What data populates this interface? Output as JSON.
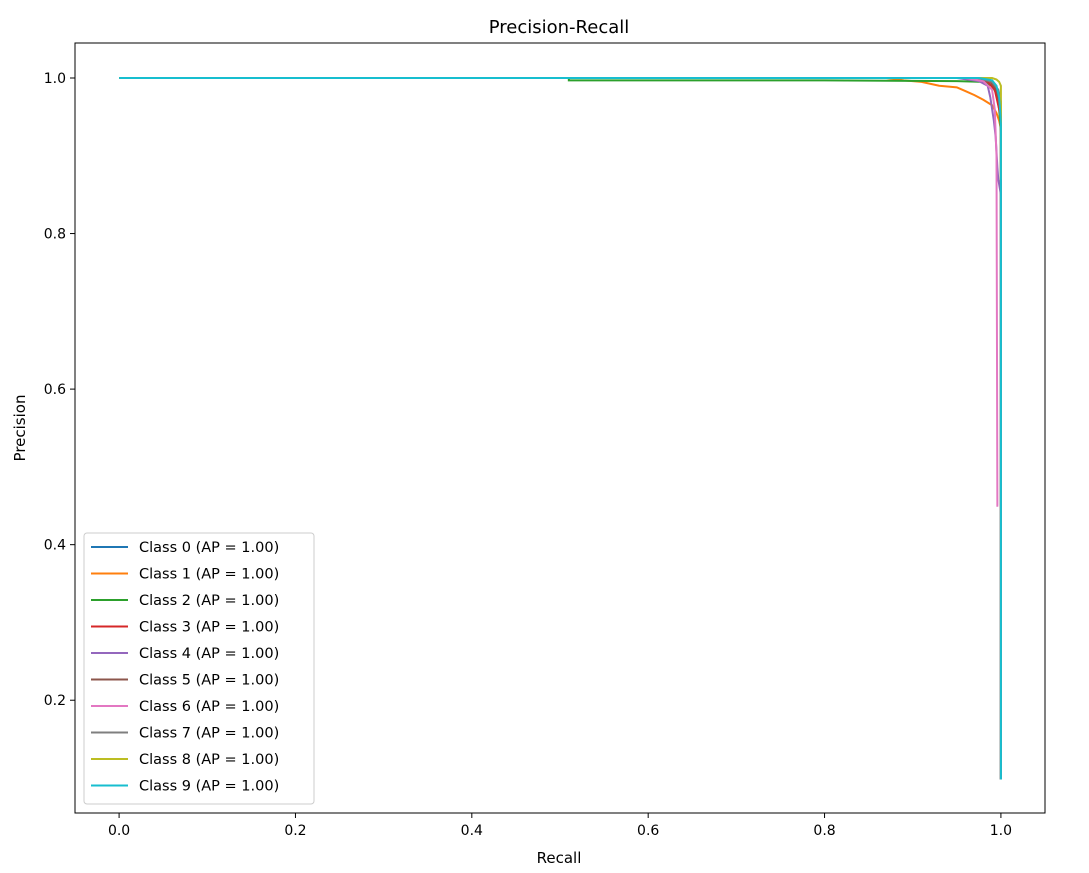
{
  "chart_data": {
    "type": "line",
    "title": "Precision-Recall",
    "xlabel": "Recall",
    "ylabel": "Precision",
    "xlim": [
      -0.05,
      1.05
    ],
    "ylim": [
      0.055,
      1.045
    ],
    "xticks": [
      0.0,
      0.2,
      0.4,
      0.6,
      0.8,
      1.0
    ],
    "xtick_labels": [
      "0.0",
      "0.2",
      "0.4",
      "0.6",
      "0.8",
      "1.0"
    ],
    "yticks": [
      0.2,
      0.4,
      0.6,
      0.8,
      1.0
    ],
    "ytick_labels": [
      "0.2",
      "0.4",
      "0.6",
      "0.8",
      "1.0"
    ],
    "grid": false,
    "legend_position": "lower-left",
    "series": [
      {
        "name": "Class 0 (AP = 1.00)",
        "color": "#1f77b4",
        "points": [
          [
            0.0,
            1.0
          ],
          [
            0.97,
            1.0
          ],
          [
            0.99,
            0.995
          ],
          [
            0.998,
            0.98
          ],
          [
            1.0,
            0.95
          ],
          [
            1.0,
            0.098
          ]
        ]
      },
      {
        "name": "Class 1 (AP = 1.00)",
        "color": "#ff7f0e",
        "points": [
          [
            0.0,
            1.0
          ],
          [
            0.87,
            1.0
          ],
          [
            0.89,
            0.997
          ],
          [
            0.91,
            0.995
          ],
          [
            0.93,
            0.99
          ],
          [
            0.95,
            0.988
          ],
          [
            0.96,
            0.983
          ],
          [
            0.97,
            0.978
          ],
          [
            0.98,
            0.972
          ],
          [
            0.99,
            0.965
          ],
          [
            0.995,
            0.955
          ],
          [
            0.998,
            0.945
          ],
          [
            1.0,
            0.935
          ],
          [
            1.0,
            0.098
          ]
        ]
      },
      {
        "name": "Class 2 (AP = 1.00)",
        "color": "#2ca02c",
        "points": [
          [
            0.0,
            1.0
          ],
          [
            0.51,
            1.0
          ],
          [
            0.51,
            0.997
          ],
          [
            0.8,
            0.997
          ],
          [
            0.95,
            0.996
          ],
          [
            0.98,
            0.995
          ],
          [
            0.99,
            0.99
          ],
          [
            0.995,
            0.98
          ],
          [
            0.998,
            0.96
          ],
          [
            1.0,
            0.93
          ],
          [
            1.0,
            0.098
          ]
        ]
      },
      {
        "name": "Class 3 (AP = 1.00)",
        "color": "#d62728",
        "points": [
          [
            0.0,
            1.0
          ],
          [
            0.96,
            1.0
          ],
          [
            0.985,
            0.995
          ],
          [
            0.993,
            0.985
          ],
          [
            0.997,
            0.965
          ],
          [
            1.0,
            0.95
          ],
          [
            1.0,
            0.098
          ]
        ]
      },
      {
        "name": "Class 4 (AP = 1.00)",
        "color": "#9467bd",
        "points": [
          [
            0.0,
            1.0
          ],
          [
            0.95,
            1.0
          ],
          [
            0.975,
            0.996
          ],
          [
            0.985,
            0.99
          ],
          [
            0.988,
            0.975
          ],
          [
            0.99,
            0.96
          ],
          [
            0.992,
            0.945
          ],
          [
            0.994,
            0.925
          ],
          [
            0.995,
            0.905
          ],
          [
            0.996,
            0.885
          ],
          [
            0.997,
            0.87
          ],
          [
            1.0,
            0.85
          ],
          [
            1.0,
            0.098
          ]
        ]
      },
      {
        "name": "Class 5 (AP = 1.00)",
        "color": "#8c564b",
        "points": [
          [
            0.0,
            1.0
          ],
          [
            0.97,
            1.0
          ],
          [
            0.988,
            0.995
          ],
          [
            0.995,
            0.985
          ],
          [
            0.998,
            0.97
          ],
          [
            1.0,
            0.95
          ],
          [
            1.0,
            0.098
          ]
        ]
      },
      {
        "name": "Class 6 (AP = 1.00)",
        "color": "#e377c2",
        "points": [
          [
            0.0,
            1.0
          ],
          [
            0.96,
            1.0
          ],
          [
            0.98,
            0.996
          ],
          [
            0.99,
            0.985
          ],
          [
            0.993,
            0.96
          ],
          [
            0.995,
            0.9
          ],
          [
            0.996,
            0.45
          ],
          [
            0.997,
            0.45
          ]
        ]
      },
      {
        "name": "Class 7 (AP = 1.00)",
        "color": "#7f7f7f",
        "points": [
          [
            0.0,
            1.0
          ],
          [
            0.975,
            1.0
          ],
          [
            0.99,
            0.995
          ],
          [
            0.997,
            0.985
          ],
          [
            1.0,
            0.97
          ],
          [
            1.0,
            0.098
          ]
        ]
      },
      {
        "name": "Class 8 (AP = 1.00)",
        "color": "#bcbd22",
        "points": [
          [
            0.0,
            1.0
          ],
          [
            0.99,
            1.0
          ],
          [
            0.995,
            0.998
          ],
          [
            0.998,
            0.995
          ],
          [
            1.0,
            0.99
          ],
          [
            1.0,
            0.87
          ]
        ]
      },
      {
        "name": "Class 9 (AP = 1.00)",
        "color": "#17becf",
        "points": [
          [
            0.0,
            1.0
          ],
          [
            0.975,
            1.0
          ],
          [
            0.99,
            0.997
          ],
          [
            0.995,
            0.99
          ],
          [
            0.998,
            0.975
          ],
          [
            0.999,
            0.96
          ],
          [
            1.0,
            0.94
          ],
          [
            1.0,
            0.098
          ]
        ]
      }
    ]
  }
}
